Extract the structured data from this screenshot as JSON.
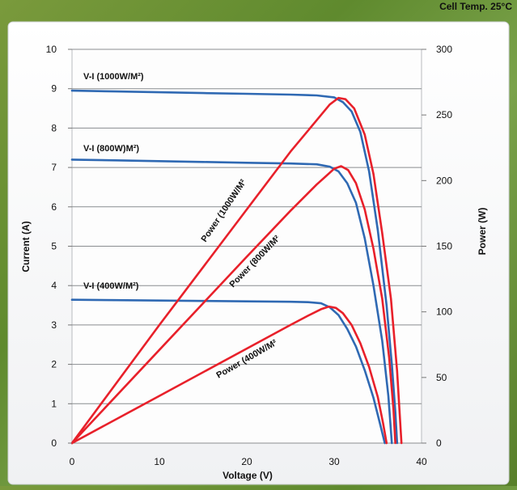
{
  "chart_data": {
    "type": "line",
    "corner_note": "Cell Temp. 25°C",
    "xlabel": "Voltage (V)",
    "ylabel_left": "Current (A)",
    "ylabel_right": "Power (W)",
    "xlim": [
      0,
      40
    ],
    "ylim_left": [
      0,
      10
    ],
    "ylim_right": [
      0,
      300
    ],
    "x_ticks": [
      0,
      10,
      20,
      30,
      40
    ],
    "y_left_ticks": [
      0,
      1,
      2,
      3,
      4,
      5,
      6,
      7,
      8,
      9,
      10
    ],
    "y_right_ticks": [
      0,
      50,
      100,
      150,
      200,
      250,
      300
    ],
    "grid": "horizontal",
    "colors": {
      "vi": "#2f69b3",
      "power": "#e8202a"
    },
    "series": [
      {
        "name": "V-I (1000W/M²)",
        "kind": "vi",
        "axis": "left",
        "points": [
          [
            0,
            8.95
          ],
          [
            5,
            8.93
          ],
          [
            10,
            8.91
          ],
          [
            15,
            8.89
          ],
          [
            20,
            8.87
          ],
          [
            25,
            8.85
          ],
          [
            28,
            8.83
          ],
          [
            30,
            8.78
          ],
          [
            31,
            8.66
          ],
          [
            32,
            8.42
          ],
          [
            33,
            7.9
          ],
          [
            34,
            6.9
          ],
          [
            35,
            5.4
          ],
          [
            36,
            3.5
          ],
          [
            36.6,
            2.0
          ],
          [
            37,
            0.8
          ],
          [
            37.2,
            0
          ]
        ]
      },
      {
        "name": "V-I (800W)M²)",
        "kind": "vi",
        "axis": "left",
        "points": [
          [
            0,
            7.2
          ],
          [
            5,
            7.18
          ],
          [
            10,
            7.16
          ],
          [
            15,
            7.14
          ],
          [
            20,
            7.12
          ],
          [
            25,
            7.1
          ],
          [
            28,
            7.08
          ],
          [
            29.5,
            7.02
          ],
          [
            30.5,
            6.9
          ],
          [
            31.5,
            6.6
          ],
          [
            32.5,
            6.1
          ],
          [
            33.5,
            5.2
          ],
          [
            34.5,
            4.0
          ],
          [
            35.5,
            2.6
          ],
          [
            36.2,
            1.2
          ],
          [
            36.6,
            0
          ]
        ]
      },
      {
        "name": "V-I (400W/M²)",
        "kind": "vi",
        "axis": "left",
        "points": [
          [
            0,
            3.64
          ],
          [
            5,
            3.63
          ],
          [
            10,
            3.62
          ],
          [
            15,
            3.61
          ],
          [
            20,
            3.6
          ],
          [
            25,
            3.59
          ],
          [
            27,
            3.58
          ],
          [
            28.5,
            3.55
          ],
          [
            29.5,
            3.45
          ],
          [
            30.5,
            3.25
          ],
          [
            31.5,
            2.9
          ],
          [
            32.5,
            2.45
          ],
          [
            33.5,
            1.85
          ],
          [
            34.5,
            1.15
          ],
          [
            35.3,
            0.45
          ],
          [
            35.8,
            0
          ]
        ]
      },
      {
        "name": "Power (1000W/M²",
        "kind": "power",
        "axis": "right",
        "points": [
          [
            0,
            0
          ],
          [
            10,
            90
          ],
          [
            20,
            178
          ],
          [
            25,
            222
          ],
          [
            28,
            246
          ],
          [
            29.5,
            258
          ],
          [
            30.5,
            263
          ],
          [
            31.3,
            262
          ],
          [
            32.3,
            255
          ],
          [
            33.5,
            235
          ],
          [
            34.5,
            205
          ],
          [
            35.5,
            160
          ],
          [
            36.5,
            110
          ],
          [
            37.2,
            55
          ],
          [
            37.7,
            0
          ]
        ]
      },
      {
        "name": "Power (800W/M²",
        "kind": "power",
        "axis": "right",
        "points": [
          [
            0,
            0
          ],
          [
            10,
            71
          ],
          [
            20,
            142
          ],
          [
            25,
            177
          ],
          [
            28,
            197
          ],
          [
            29,
            203
          ],
          [
            30,
            209
          ],
          [
            30.8,
            211
          ],
          [
            31.6,
            208
          ],
          [
            32.5,
            198
          ],
          [
            33.5,
            178
          ],
          [
            34.5,
            148
          ],
          [
            35.5,
            110
          ],
          [
            36.3,
            65
          ],
          [
            36.8,
            25
          ],
          [
            37,
            0
          ]
        ]
      },
      {
        "name": "Power (400W/M²",
        "kind": "power",
        "axis": "right",
        "points": [
          [
            0,
            0
          ],
          [
            10,
            36
          ],
          [
            20,
            72
          ],
          [
            25,
            90
          ],
          [
            27,
            97
          ],
          [
            28.5,
            102
          ],
          [
            29.4,
            104
          ],
          [
            30.2,
            103
          ],
          [
            31,
            99
          ],
          [
            32,
            90
          ],
          [
            33,
            76
          ],
          [
            34,
            58
          ],
          [
            35,
            35
          ],
          [
            35.6,
            15
          ],
          [
            36,
            0
          ]
        ]
      }
    ],
    "series_labels": [
      {
        "text": "V-I (1000W/M²)"
      },
      {
        "text": "V-I (800W)M²)"
      },
      {
        "text": "V-I (400W/M²)"
      },
      {
        "text": "Power (1000W/M²"
      },
      {
        "text": "Power (800W/M²"
      },
      {
        "text": "Power (400W/M²"
      }
    ]
  }
}
